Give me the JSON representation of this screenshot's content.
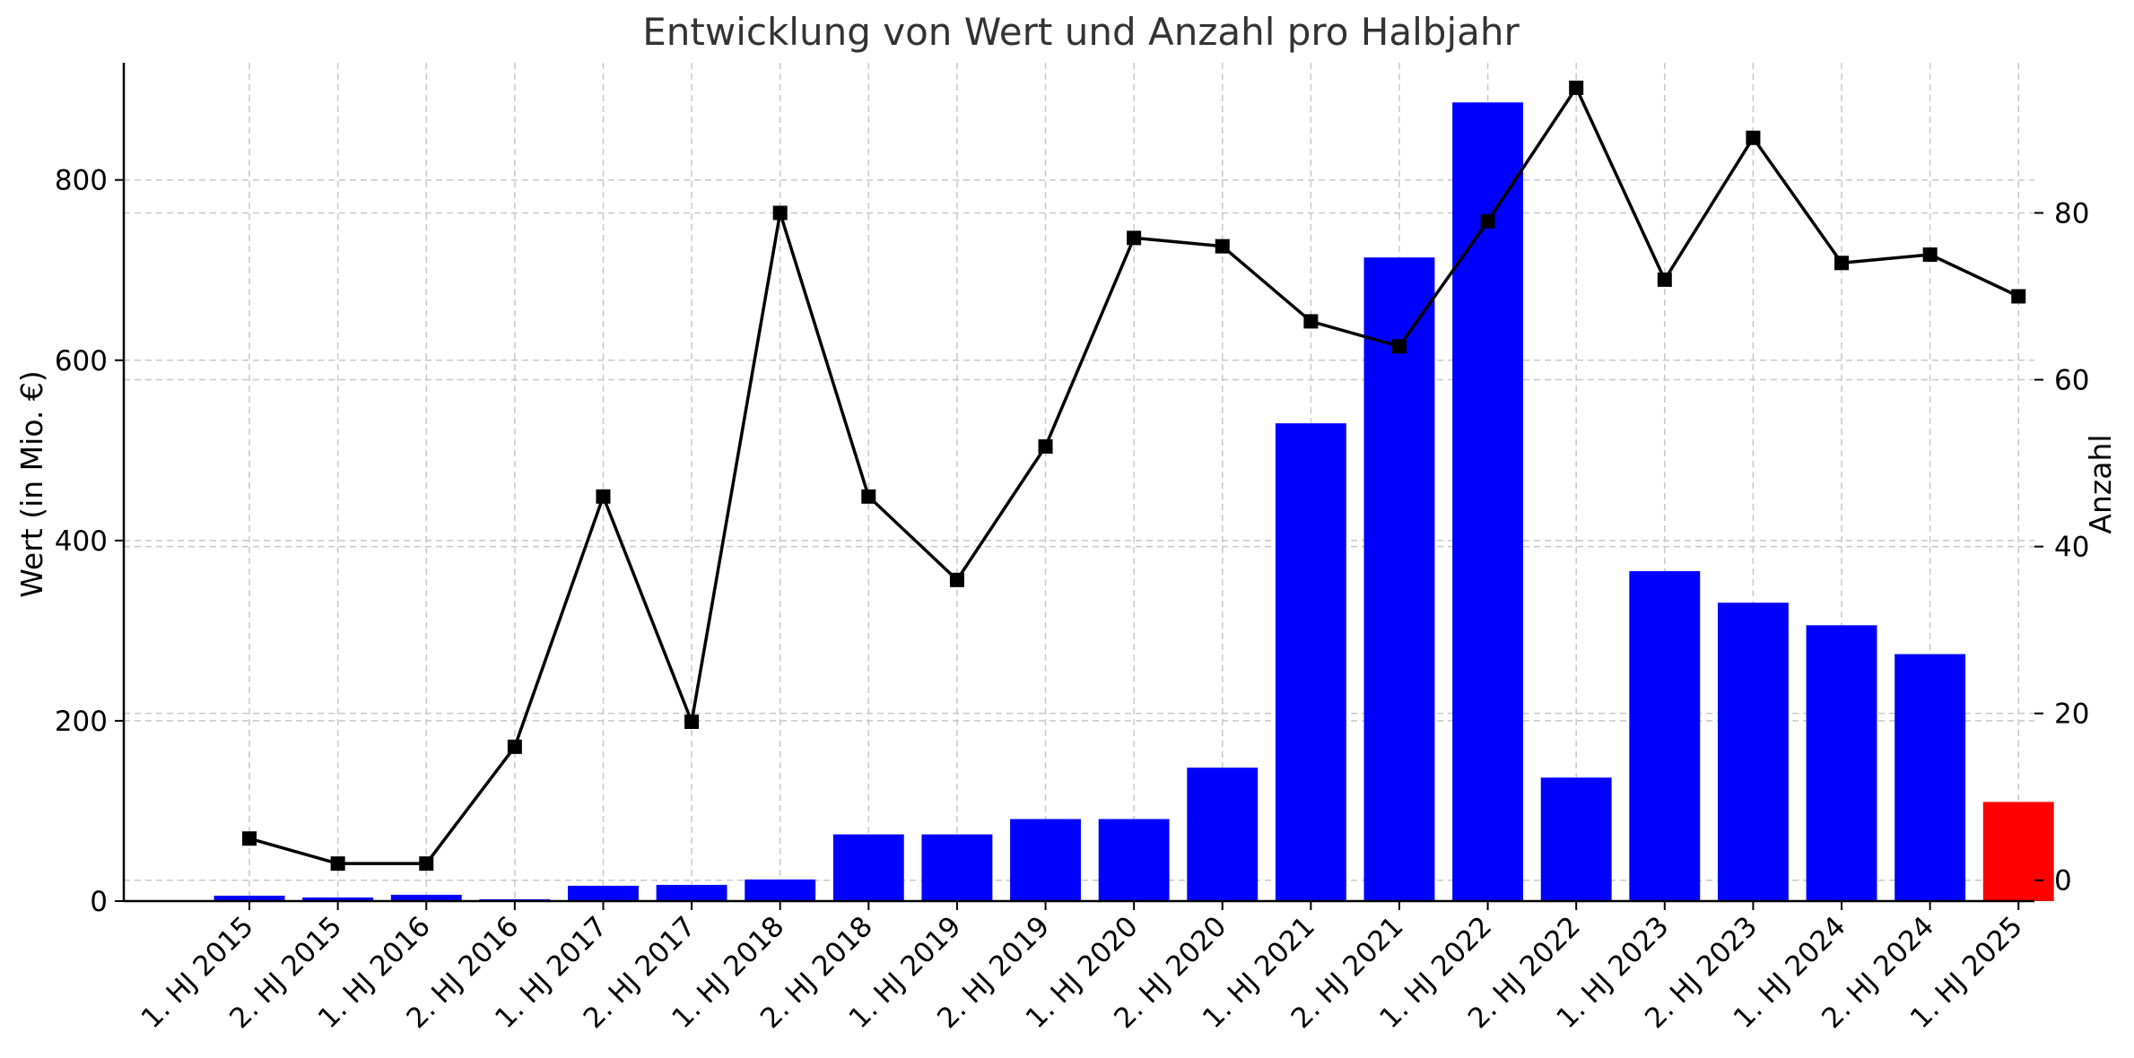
{
  "chart_data": {
    "type": "bar+line",
    "title": "Entwicklung von Wert und Anzahl pro Halbjahr",
    "ylabel_left": "Wert (in Mio. €)",
    "ylabel_right": "Anzahl",
    "categories": [
      "1. HJ 2015",
      "2. HJ 2015",
      "1. HJ 2016",
      "2. HJ 2016",
      "1. HJ 2017",
      "2. HJ 2017",
      "1. HJ 2018",
      "2. HJ 2018",
      "1. HJ 2019",
      "2. HJ 2019",
      "1. HJ 2020",
      "2. HJ 2020",
      "1. HJ 2021",
      "2. HJ 2021",
      "1. HJ 2022",
      "2. HJ 2022",
      "1. HJ 2023",
      "2. HJ 2023",
      "1. HJ 2024",
      "2. HJ 2024",
      "1. HJ 2025"
    ],
    "bar_values": [
      6,
      4,
      7,
      2,
      17,
      18,
      24,
      74,
      74,
      91,
      91,
      148,
      530,
      714,
      886,
      137,
      366,
      331,
      306,
      274,
      110
    ],
    "bar_colors": [
      "#0000ff",
      "#0000ff",
      "#0000ff",
      "#0000ff",
      "#0000ff",
      "#0000ff",
      "#0000ff",
      "#0000ff",
      "#0000ff",
      "#0000ff",
      "#0000ff",
      "#0000ff",
      "#0000ff",
      "#0000ff",
      "#0000ff",
      "#0000ff",
      "#0000ff",
      "#0000ff",
      "#0000ff",
      "#0000ff",
      "#ff0000"
    ],
    "line_values": [
      5,
      2,
      2,
      16,
      46,
      19,
      80,
      46,
      36,
      52,
      77,
      76,
      67,
      64,
      79,
      95,
      72,
      89,
      74,
      75,
      70
    ],
    "line_color": "#000000",
    "left_ylim": [
      0,
      930
    ],
    "left_ticks": [
      0,
      200,
      400,
      600,
      800
    ],
    "right_ylim": [
      -2.5,
      98
    ],
    "right_ticks": [
      0,
      20,
      40,
      60,
      80
    ],
    "grid": true
  }
}
